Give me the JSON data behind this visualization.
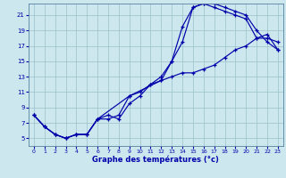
{
  "xlabel": "Graphe des températures (°c)",
  "xlim": [
    -0.5,
    23.5
  ],
  "ylim": [
    4.0,
    22.5
  ],
  "xticks": [
    0,
    1,
    2,
    3,
    4,
    5,
    6,
    7,
    8,
    9,
    10,
    11,
    12,
    13,
    14,
    15,
    16,
    17,
    18,
    19,
    20,
    21,
    22,
    23
  ],
  "yticks": [
    5,
    7,
    9,
    11,
    13,
    15,
    17,
    19,
    21
  ],
  "bg_color": "#cce8ee",
  "line_color": "#0000aa",
  "line1_x": [
    0,
    1,
    2,
    3,
    4,
    5,
    6,
    7,
    8,
    9,
    10,
    11,
    12,
    13,
    14,
    15,
    16,
    17,
    18,
    19,
    20,
    21,
    22,
    23
  ],
  "line1_y": [
    8.0,
    6.5,
    5.5,
    5.0,
    5.5,
    5.5,
    7.5,
    7.5,
    8.0,
    10.5,
    11.0,
    12.0,
    13.0,
    15.0,
    19.5,
    22.0,
    22.5,
    22.5,
    22.0,
    21.5,
    21.0,
    19.0,
    17.5,
    16.5
  ],
  "line2_x": [
    0,
    1,
    2,
    3,
    4,
    5,
    6,
    7,
    8,
    9,
    10,
    11,
    12,
    13,
    14,
    15,
    16,
    17,
    18,
    19,
    20,
    21,
    22,
    23
  ],
  "line2_y": [
    8.0,
    6.5,
    5.5,
    5.0,
    5.5,
    5.5,
    7.5,
    8.0,
    7.5,
    9.5,
    10.5,
    12.0,
    12.5,
    15.0,
    17.5,
    22.0,
    22.5,
    22.0,
    21.5,
    21.0,
    20.5,
    18.0,
    18.0,
    17.5
  ],
  "line3_x": [
    0,
    1,
    2,
    3,
    4,
    5,
    6,
    9,
    12,
    13,
    14,
    15,
    16,
    17,
    18,
    19,
    20,
    21,
    22,
    23
  ],
  "line3_y": [
    8.0,
    6.5,
    5.5,
    5.0,
    5.5,
    5.5,
    7.5,
    10.5,
    12.5,
    13.0,
    13.5,
    13.5,
    14.0,
    14.5,
    15.5,
    16.5,
    17.0,
    18.0,
    18.5,
    16.5
  ]
}
